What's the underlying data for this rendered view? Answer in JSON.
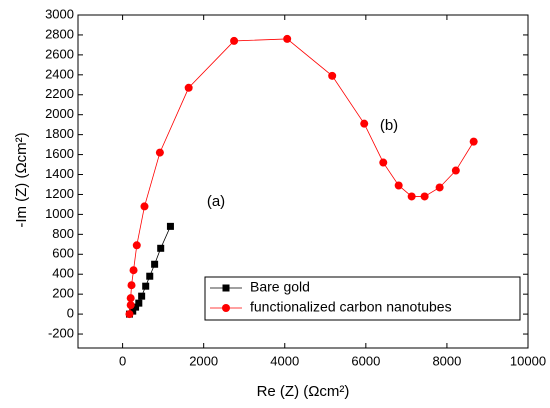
{
  "chart_data": {
    "type": "line",
    "xlabel": "Re (Z) (Ωcm²)",
    "ylabel": "-Im (Z) (Ωcm²)",
    "annotations": [
      "(a)",
      "(b)"
    ],
    "xlim": [
      -1100,
      10000
    ],
    "ylim": [
      -340,
      3000
    ],
    "xticks": [
      0,
      2000,
      4000,
      6000,
      8000,
      10000
    ],
    "yticks": [
      -200,
      0,
      200,
      400,
      600,
      800,
      1000,
      1200,
      1400,
      1600,
      1800,
      2000,
      2200,
      2400,
      2600,
      2800,
      3000
    ],
    "grid": false,
    "series": [
      {
        "name": "Bare gold",
        "color": "#000000",
        "marker": "square",
        "x": [
          170,
          250,
          320,
          400,
          470,
          570,
          670,
          790,
          940,
          1180
        ],
        "values": [
          0,
          30,
          70,
          110,
          180,
          280,
          380,
          500,
          660,
          880
        ]
      },
      {
        "name": "functionalized carbon nanotubes",
        "color": "#ff0000",
        "marker": "circle",
        "x": [
          170,
          200,
          200,
          220,
          270,
          350,
          540,
          920,
          1630,
          2750,
          4060,
          5170,
          5960,
          6430,
          6810,
          7130,
          7450,
          7820,
          8220,
          8660
        ],
        "values": [
          0,
          90,
          160,
          290,
          440,
          690,
          1080,
          1620,
          2270,
          2740,
          2760,
          2390,
          1910,
          1520,
          1290,
          1180,
          1180,
          1270,
          1440,
          1730
        ]
      }
    ]
  }
}
